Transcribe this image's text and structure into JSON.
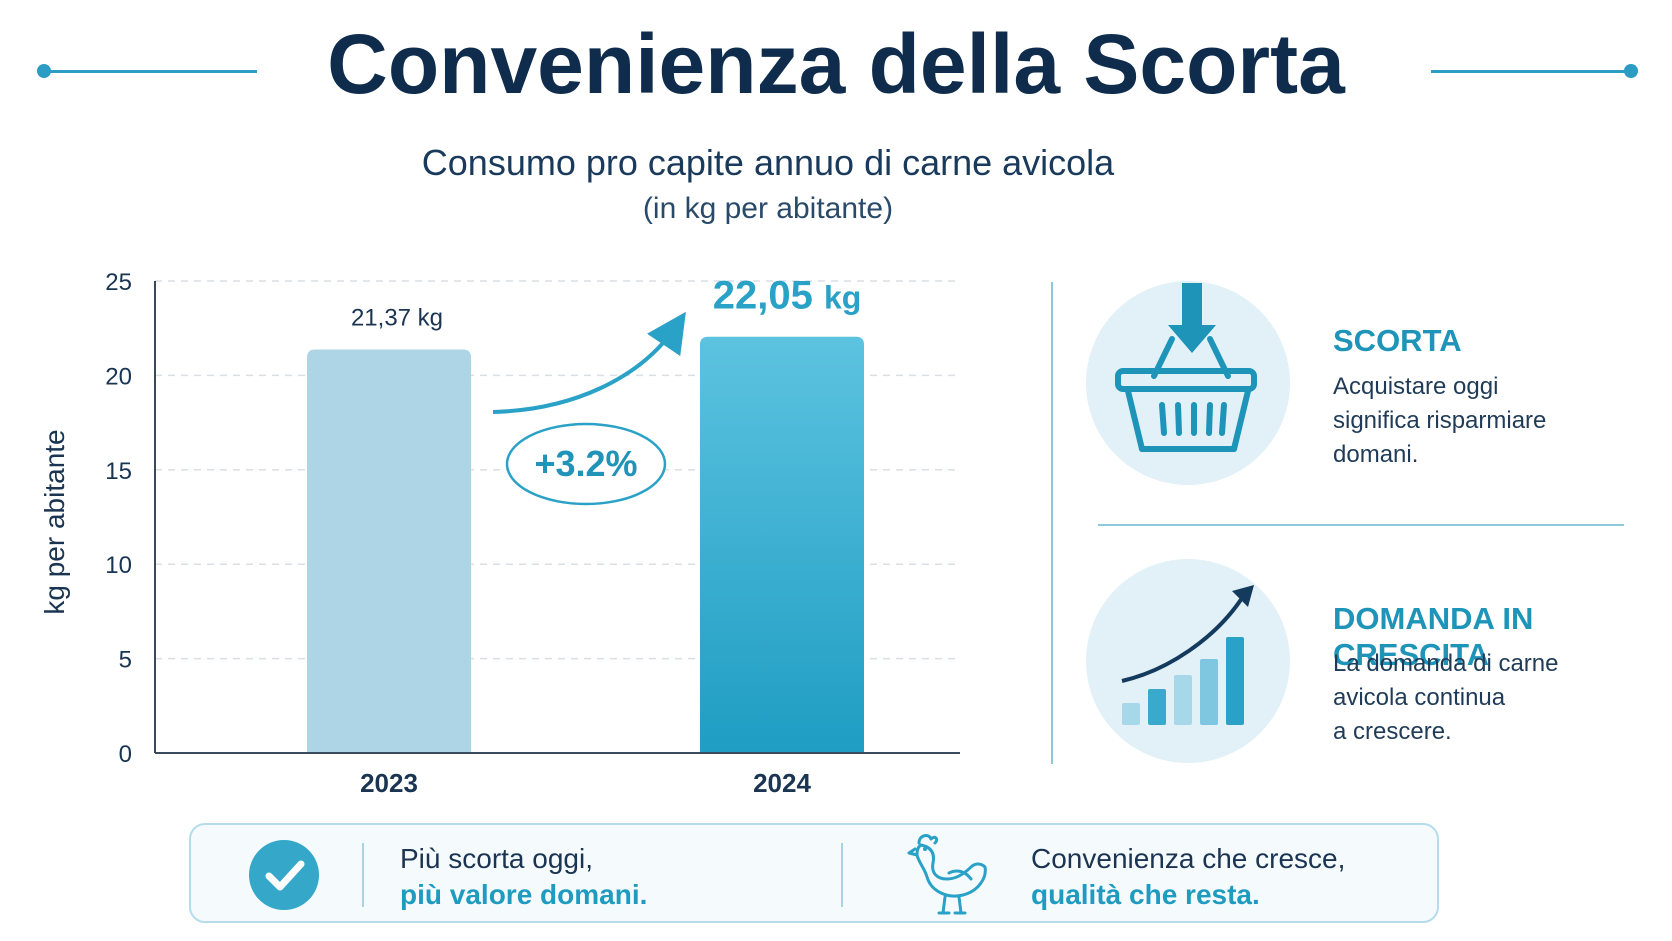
{
  "title": "Convenienza della Scorta",
  "chart_data": {
    "type": "bar",
    "title": "Consumo pro capite annuo di carne avicola",
    "subtitle": "(in kg per abitante)",
    "ylabel": "kg per abitante",
    "xlabel": "",
    "categories": [
      "2023",
      "2024"
    ],
    "values": [
      21.37,
      22.05
    ],
    "value_labels": [
      "21,37 kg",
      "22,05 kg"
    ],
    "ylim": [
      0,
      25
    ],
    "yticks": [
      0,
      5,
      10,
      15,
      20,
      25
    ],
    "grid": true,
    "colors": [
      "#add5e6",
      "#35aacd"
    ],
    "change_annotation": "+3.2%"
  },
  "info_panels": [
    {
      "icon": "shopping-basket-icon",
      "title": "SCORTA",
      "lines": [
        "Acquistare oggi",
        "significa risparmiare",
        "domani."
      ]
    },
    {
      "icon": "growth-chart-icon",
      "title": "DOMANDA IN CRESCITA",
      "lines": [
        "La domanda di carne",
        "avicola continua",
        "a crescere."
      ]
    }
  ],
  "banner": {
    "left": {
      "icon": "checkmark-icon",
      "line1": "Più scorta oggi,",
      "line2": "più valore domani."
    },
    "right": {
      "icon": "chicken-icon",
      "line1": "Convenienza che cresce,",
      "line2": "qualità che resta."
    }
  },
  "colors": {
    "accent": "#2b9cc4",
    "title": "#0f2c4c",
    "highlight": "#1f9bc0"
  }
}
